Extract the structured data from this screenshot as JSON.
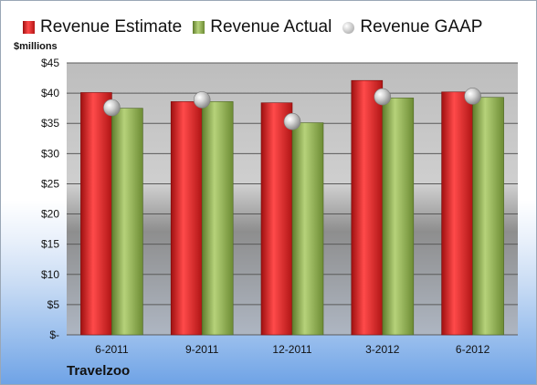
{
  "chart_data": {
    "type": "bar",
    "title": "",
    "ylabel": "$millions",
    "xlabel": "",
    "company": "Travelzoo",
    "categories": [
      "6-2011",
      "9-2011",
      "12-2011",
      "3-2012",
      "6-2012"
    ],
    "series": [
      {
        "name": "Revenue Estimate",
        "type": "bar",
        "color": "#d42626",
        "values": [
          40.1,
          38.6,
          38.4,
          42.1,
          40.2
        ]
      },
      {
        "name": "Revenue Actual",
        "type": "bar",
        "color": "#8aaa4a",
        "values": [
          37.5,
          38.6,
          35.1,
          39.2,
          39.3
        ]
      },
      {
        "name": "Revenue GAAP",
        "type": "marker",
        "color": "#c8c8c8",
        "values": [
          37.6,
          38.9,
          35.3,
          39.4,
          39.5
        ]
      }
    ],
    "ylim": [
      0,
      45
    ],
    "ytick_values": [
      0,
      5,
      10,
      15,
      20,
      25,
      30,
      35,
      40,
      45
    ],
    "ytick_labels": [
      "$-",
      "$5",
      "$10",
      "$15",
      "$20",
      "$25",
      "$30",
      "$35",
      "$40",
      "$45"
    ],
    "grid": true,
    "legend_position": "top"
  }
}
